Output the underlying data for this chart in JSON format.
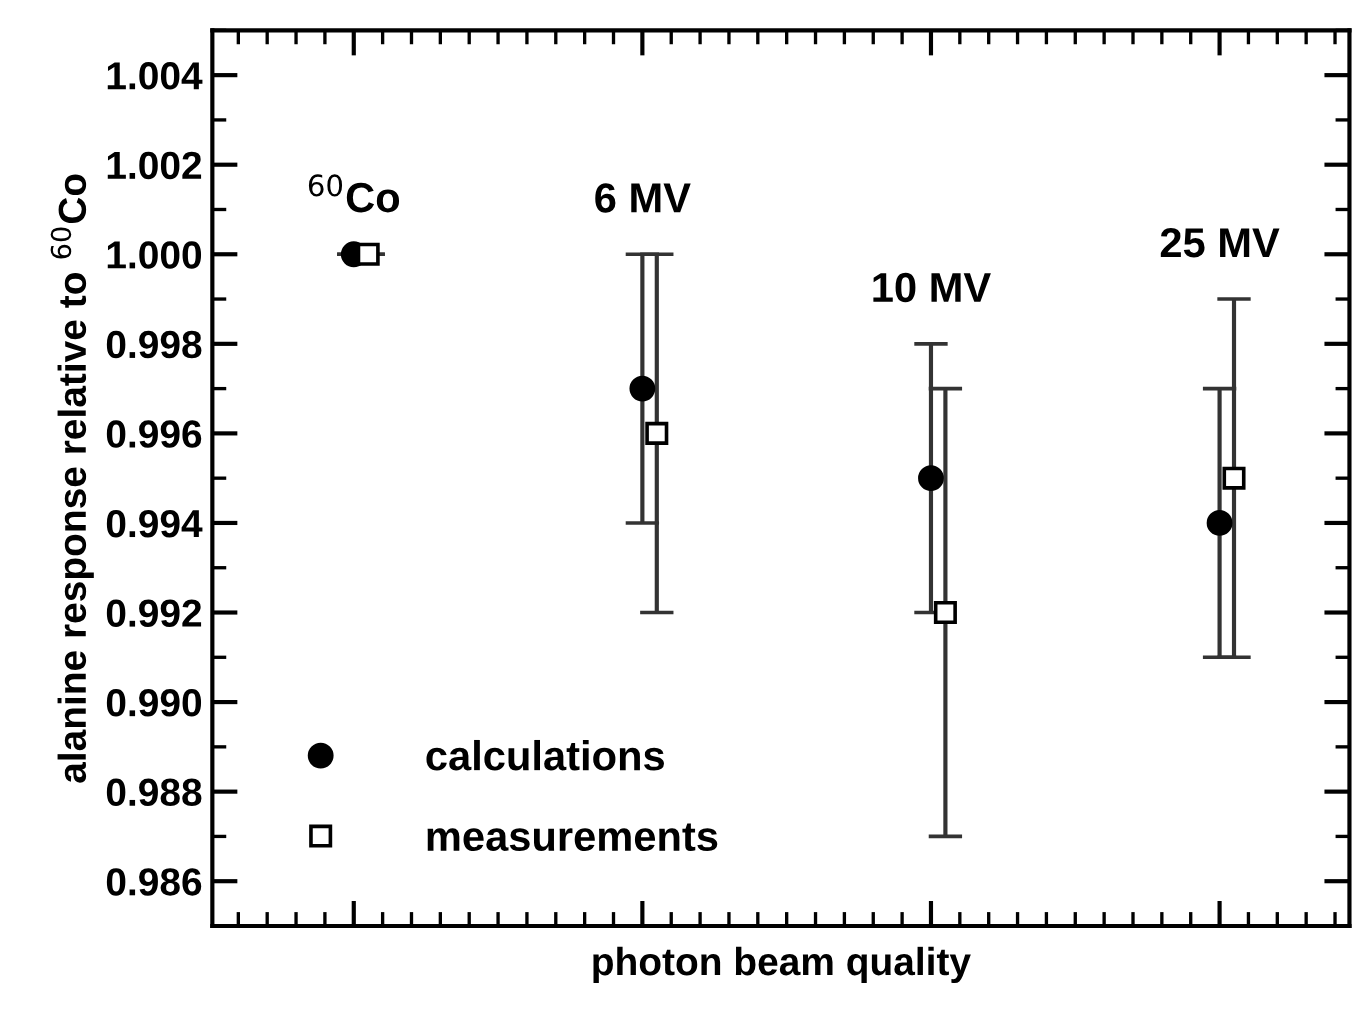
{
  "chart_data": {
    "type": "scatter",
    "xlabel": "photon beam quality",
    "ylabel": "alanine response relative to $^{60}$Co",
    "categories": [
      null,
      null,
      null,
      null
    ],
    "series": [
      {
        "name": "calculations",
        "color": "#000000",
        "marker": "circle",
        "values": [
          1.0,
          0.997,
          0.995,
          0.994
        ],
        "errors": [
          null,
          0.003,
          0.003,
          0.003
        ]
      },
      {
        "name": "measurements",
        "color": "#000000",
        "marker": "square",
        "values": [
          1.0,
          0.996,
          0.992,
          0.995
        ],
        "errors": [
          null,
          0.004,
          0.005,
          0.004
        ]
      }
    ],
    "annotations": [
      "$^{60}$Co",
      "6 MV",
      "10 MV",
      "25 MV"
    ],
    "ylim": [
      0.985,
      1.005
    ],
    "yticks": [
      {
        "value": 0.986,
        "label": "0.986"
      },
      {
        "value": 0.988,
        "label": "0.988"
      },
      {
        "value": 0.99,
        "label": "0.990"
      },
      {
        "value": 0.992,
        "label": "0.992"
      },
      {
        "value": 0.994,
        "label": "0.994"
      },
      {
        "value": 0.996,
        "label": "0.996"
      },
      {
        "value": 0.998,
        "label": "0.998"
      },
      {
        "value": 1,
        "label": "1.000"
      },
      {
        "value": 1.002,
        "label": "1.002"
      },
      {
        "value": 1.004,
        "label": "1.004"
      }
    ],
    "grid": false,
    "legend": "lower left"
  }
}
